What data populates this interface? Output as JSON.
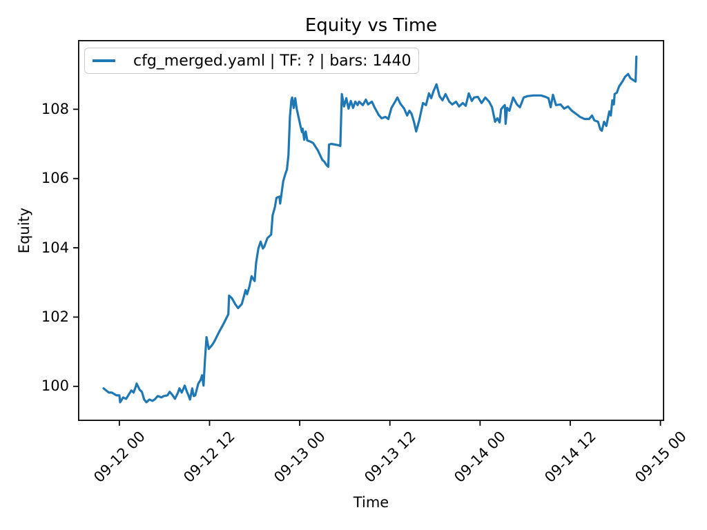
{
  "chart_data": {
    "type": "line",
    "title": "Equity vs Time",
    "xlabel": "Time",
    "ylabel": "Equity",
    "grid": false,
    "legend_position": "upper left",
    "x_unit": "hours since 09-12 00:00",
    "xlim_hours": [
      -5.5,
      72.5
    ],
    "ylim": [
      99.0,
      110.0
    ],
    "x_tick_hours": [
      0,
      12,
      24,
      36,
      48,
      60,
      72
    ],
    "x_tick_labels": [
      "09-12 00",
      "09-12 12",
      "09-13 00",
      "09-13 12",
      "09-14 00",
      "09-14 12",
      "09-15 00"
    ],
    "y_ticks": [
      100,
      102,
      104,
      106,
      108
    ],
    "series": [
      {
        "name": "cfg_merged.yaml | TF: ? | bars: 1440",
        "color": "#1f77b4",
        "hours": [
          -2.1,
          -1.4,
          -1.0,
          -0.4,
          0.0,
          0.1,
          0.5,
          0.9,
          1.3,
          1.6,
          1.9,
          2.2,
          2.3,
          2.7,
          3.0,
          3.3,
          3.6,
          4.0,
          4.4,
          4.7,
          5.1,
          5.6,
          5.9,
          6.4,
          6.7,
          7.1,
          7.4,
          7.8,
          8.0,
          8.3,
          8.7,
          9.0,
          9.2,
          9.4,
          9.7,
          9.9,
          10.1,
          10.5,
          10.8,
          11.0,
          11.2,
          11.4,
          11.6,
          11.9,
          12.3,
          12.6,
          13.3,
          13.8,
          14.5,
          14.6,
          15.0,
          15.4,
          15.8,
          16.3,
          16.8,
          17.0,
          17.3,
          17.6,
          18.0,
          18.2,
          18.5,
          18.8,
          19.1,
          19.3,
          19.7,
          20.2,
          20.4,
          20.7,
          20.9,
          21.3,
          21.4,
          21.8,
          22.1,
          22.3,
          22.5,
          22.7,
          22.9,
          23.0,
          23.2,
          23.4,
          23.6,
          23.8,
          24.1,
          24.3,
          24.4,
          24.6,
          24.8,
          25.0,
          25.5,
          25.8,
          26.1,
          26.4,
          26.7,
          27.0,
          27.3,
          27.6,
          27.8,
          27.9,
          28.2,
          28.7,
          29.2,
          29.4,
          29.6,
          29.9,
          30.2,
          30.5,
          30.8,
          31.1,
          31.4,
          31.7,
          31.9,
          32.4,
          32.8,
          33.1,
          33.6,
          34.0,
          34.5,
          34.9,
          35.4,
          35.8,
          36.2,
          36.7,
          37.0,
          37.4,
          37.9,
          38.3,
          38.6,
          38.9,
          39.2,
          39.5,
          39.9,
          40.4,
          40.8,
          41.2,
          41.5,
          41.8,
          42.2,
          42.6,
          43.0,
          43.4,
          43.9,
          44.3,
          44.8,
          45.2,
          45.7,
          46.1,
          46.5,
          46.9,
          47.2,
          47.7,
          48.2,
          48.7,
          49.2,
          49.6,
          50.0,
          50.3,
          50.6,
          50.8,
          51.1,
          51.3,
          51.4,
          51.6,
          51.9,
          52.4,
          52.9,
          53.3,
          53.8,
          54.3,
          55.1,
          56.1,
          56.7,
          57.1,
          57.4,
          57.7,
          58.1,
          58.7,
          59.2,
          59.7,
          60.2,
          60.7,
          61.3,
          61.9,
          62.5,
          62.9,
          63.2,
          63.7,
          64.0,
          64.2,
          64.5,
          64.8,
          65.2,
          65.4,
          65.6,
          65.8,
          65.9,
          66.2,
          66.5,
          67.0,
          67.3,
          67.7,
          68.0,
          68.4,
          68.7,
          68.8
        ],
        "equity": [
          99.94,
          99.82,
          99.82,
          99.74,
          99.74,
          99.54,
          99.68,
          99.64,
          99.78,
          99.88,
          99.82,
          100.0,
          100.08,
          99.9,
          99.84,
          99.62,
          99.54,
          99.62,
          99.58,
          99.62,
          99.72,
          99.68,
          99.72,
          99.74,
          99.84,
          99.74,
          99.64,
          99.82,
          99.94,
          99.82,
          100.02,
          99.84,
          99.74,
          99.62,
          99.94,
          99.72,
          99.74,
          100.08,
          100.18,
          100.32,
          100.02,
          100.78,
          101.42,
          101.08,
          101.18,
          101.28,
          101.58,
          101.78,
          102.08,
          102.62,
          102.54,
          102.38,
          102.26,
          102.38,
          102.78,
          102.66,
          102.88,
          103.18,
          103.04,
          103.58,
          103.98,
          104.18,
          103.98,
          104.04,
          104.28,
          104.38,
          104.94,
          105.18,
          105.44,
          105.48,
          105.28,
          105.92,
          106.14,
          106.26,
          106.68,
          107.78,
          108.28,
          108.34,
          108.04,
          108.32,
          108.02,
          107.82,
          107.52,
          107.34,
          107.44,
          107.12,
          107.36,
          107.1,
          107.06,
          107.02,
          106.92,
          106.82,
          106.68,
          106.54,
          106.48,
          106.38,
          106.34,
          106.98,
          107.0,
          106.98,
          106.96,
          106.94,
          108.44,
          108.08,
          108.32,
          108.02,
          108.24,
          108.04,
          108.22,
          108.12,
          108.22,
          108.12,
          108.28,
          108.14,
          108.22,
          108.04,
          107.84,
          107.74,
          107.78,
          107.72,
          108.04,
          108.22,
          108.34,
          108.16,
          108.02,
          107.82,
          107.96,
          107.86,
          107.64,
          107.36,
          107.68,
          108.18,
          108.12,
          108.46,
          108.32,
          108.52,
          108.72,
          108.38,
          108.26,
          108.44,
          108.22,
          108.14,
          108.22,
          108.08,
          108.18,
          108.1,
          108.46,
          108.24,
          108.34,
          108.36,
          108.18,
          108.34,
          108.22,
          108.06,
          107.64,
          107.74,
          107.62,
          108.0,
          108.08,
          108.12,
          107.58,
          108.04,
          107.96,
          108.34,
          108.14,
          108.06,
          108.34,
          108.38,
          108.4,
          108.4,
          108.36,
          108.32,
          108.06,
          108.42,
          108.12,
          108.14,
          108.02,
          108.08,
          107.96,
          107.88,
          107.78,
          107.72,
          107.72,
          107.82,
          107.68,
          107.64,
          107.42,
          107.38,
          107.64,
          107.52,
          107.94,
          107.82,
          108.26,
          108.14,
          108.44,
          108.48,
          108.66,
          108.82,
          108.94,
          109.02,
          108.9,
          108.84,
          108.8,
          109.52
        ]
      }
    ]
  }
}
